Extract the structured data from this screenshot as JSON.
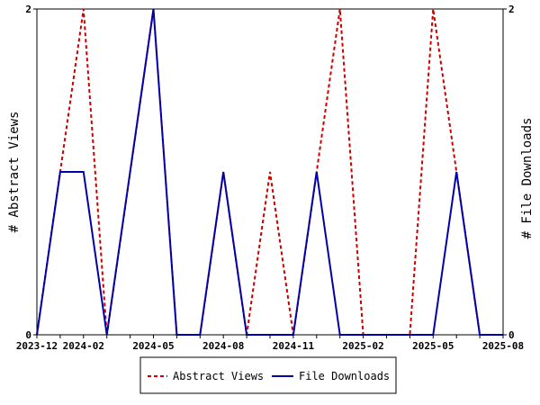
{
  "chart_data": {
    "type": "line",
    "x": [
      "2023-12",
      "2024-01",
      "2024-02",
      "2024-03",
      "2024-04",
      "2024-05",
      "2024-06",
      "2024-07",
      "2024-08",
      "2024-09",
      "2024-10",
      "2024-11",
      "2024-12",
      "2025-01",
      "2025-02",
      "2025-03",
      "2025-04",
      "2025-05",
      "2025-06",
      "2025-07",
      "2025-08"
    ],
    "x_tick_labels": [
      "2023-12",
      "2024-02",
      "2024-05",
      "2024-08",
      "2024-11",
      "2025-02",
      "2025-05",
      "2025-08"
    ],
    "x_tick_positions": [
      "2023-12",
      "2024-02",
      "2024-05",
      "2024-08",
      "2024-11",
      "2025-02",
      "2025-05",
      "2025-08"
    ],
    "series": [
      {
        "name": "Abstract Views",
        "axis": "left",
        "color": "#cc0000",
        "style": "dashed",
        "values": [
          0,
          1,
          2,
          0,
          1,
          2,
          0,
          0,
          1,
          0,
          1,
          0,
          1,
          2,
          0,
          0,
          0,
          2,
          1,
          0,
          0
        ]
      },
      {
        "name": "File Downloads",
        "axis": "right",
        "color": "#0000aa",
        "style": "solid",
        "values": [
          0,
          1,
          1,
          0,
          1,
          2,
          0,
          0,
          1,
          0,
          0,
          0,
          1,
          0,
          0,
          0,
          0,
          0,
          1,
          0,
          0
        ]
      }
    ],
    "ylabel_left": "# Abstract Views",
    "ylabel_right": "# File Downloads",
    "ylim_left": [
      0,
      2
    ],
    "ylim_right": [
      0,
      2
    ],
    "y_ticks_left": [
      "0",
      "2"
    ],
    "y_ticks_right": [
      "0",
      "2"
    ],
    "legend_position": "bottom-center",
    "grid": false
  }
}
